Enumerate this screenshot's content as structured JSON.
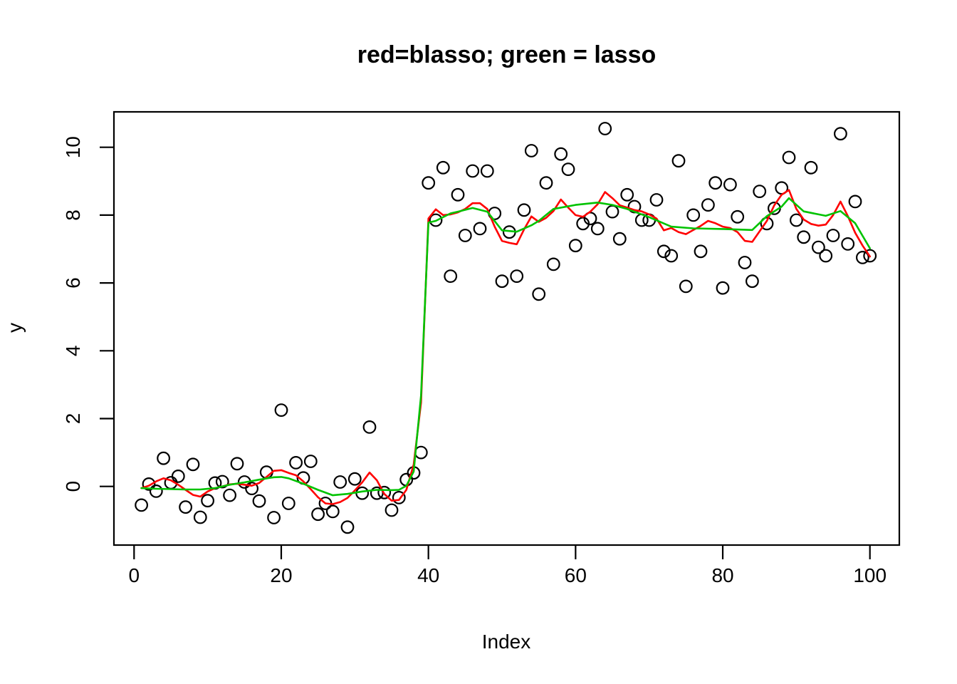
{
  "figure": {
    "title": "red=blasso; green = lasso",
    "x_axis_label": "Index",
    "y_axis_label": "y"
  },
  "chart_data": {
    "type": "scatter",
    "title": "red=blasso; green = lasso",
    "xlabel": "Index",
    "ylabel": "y",
    "xlim": [
      -2.7,
      104
    ],
    "ylim": [
      -1.73,
      11.04
    ],
    "grid": false,
    "legend": "encoded in title: red line = blasso fit, green line = lasso fit, circles = observations y vs Index",
    "x_ticks": [
      0,
      20,
      40,
      60,
      80,
      100
    ],
    "y_ticks": [
      0,
      2,
      4,
      6,
      8,
      10
    ],
    "points_color": "#000000",
    "points": {
      "x": [
        1,
        2,
        3,
        4,
        5,
        6,
        7,
        8,
        9,
        10,
        11,
        12,
        13,
        14,
        15,
        16,
        17,
        18,
        19,
        20,
        21,
        22,
        23,
        24,
        25,
        26,
        27,
        28,
        29,
        30,
        31,
        32,
        33,
        34,
        35,
        36,
        37,
        38,
        39,
        40,
        41,
        42,
        43,
        44,
        45,
        46,
        47,
        48,
        49,
        50,
        51,
        52,
        53,
        54,
        55,
        56,
        57,
        58,
        59,
        60,
        61,
        62,
        63,
        64,
        65,
        66,
        67,
        68,
        69,
        70,
        71,
        72,
        73,
        74,
        75,
        76,
        77,
        78,
        79,
        80,
        81,
        82,
        83,
        84,
        85,
        86,
        87,
        88,
        89,
        90,
        91,
        92,
        93,
        94,
        95,
        96,
        97,
        98,
        99,
        100
      ],
      "y": [
        -0.55,
        0.07,
        -0.14,
        0.83,
        0.11,
        0.3,
        -0.61,
        0.65,
        -0.91,
        -0.42,
        0.1,
        0.14,
        -0.26,
        0.67,
        0.13,
        -0.06,
        -0.43,
        0.42,
        -0.92,
        2.25,
        -0.5,
        0.7,
        0.25,
        0.74,
        -0.82,
        -0.5,
        -0.74,
        0.13,
        -1.2,
        0.22,
        -0.2,
        1.75,
        -0.2,
        -0.18,
        -0.7,
        -0.33,
        0.2,
        0.4,
        1.0,
        8.95,
        7.85,
        9.4,
        6.2,
        8.6,
        7.4,
        9.3,
        7.6,
        9.3,
        8.05,
        6.05,
        7.5,
        6.2,
        8.15,
        9.9,
        5.67,
        8.95,
        6.55,
        9.8,
        9.35,
        7.1,
        7.75,
        7.9,
        7.6,
        10.55,
        8.1,
        7.3,
        8.6,
        8.25,
        7.85,
        7.85,
        8.45,
        6.93,
        6.8,
        9.6,
        5.9,
        8.0,
        6.93,
        8.3,
        8.95,
        5.85,
        8.9,
        7.95,
        6.6,
        6.05,
        8.7,
        7.75,
        8.2,
        8.8,
        9.7,
        7.85,
        7.35,
        9.4,
        7.05,
        6.8,
        7.4,
        10.4,
        7.15,
        8.4,
        6.75,
        6.8
      ]
    },
    "series": [
      {
        "name": "blasso",
        "color": "#ff0000",
        "points": [
          [
            1,
            -0.05
          ],
          [
            2,
            0.02
          ],
          [
            3,
            0.15
          ],
          [
            4,
            0.24
          ],
          [
            5,
            0.18
          ],
          [
            6,
            0.05
          ],
          [
            7,
            -0.1
          ],
          [
            8,
            -0.25
          ],
          [
            9,
            -0.3
          ],
          [
            10,
            -0.15
          ],
          [
            11,
            -0.05
          ],
          [
            12,
            0.0
          ],
          [
            13,
            0.06
          ],
          [
            14,
            0.08
          ],
          [
            15,
            0.05
          ],
          [
            16,
            0.02
          ],
          [
            17,
            0.1
          ],
          [
            18,
            0.28
          ],
          [
            19,
            0.46
          ],
          [
            20,
            0.48
          ],
          [
            21,
            0.4
          ],
          [
            22,
            0.33
          ],
          [
            23,
            0.15
          ],
          [
            24,
            -0.08
          ],
          [
            25,
            -0.32
          ],
          [
            26,
            -0.5
          ],
          [
            27,
            -0.52
          ],
          [
            28,
            -0.46
          ],
          [
            29,
            -0.34
          ],
          [
            30,
            -0.12
          ],
          [
            31,
            0.12
          ],
          [
            32,
            0.41
          ],
          [
            33,
            0.18
          ],
          [
            34,
            -0.22
          ],
          [
            35,
            -0.42
          ],
          [
            36,
            -0.4
          ],
          [
            37,
            -0.1
          ],
          [
            38,
            0.65
          ],
          [
            39,
            2.47
          ],
          [
            40,
            7.9
          ],
          [
            41,
            8.17
          ],
          [
            42,
            8.0
          ],
          [
            43,
            8.02
          ],
          [
            44,
            8.08
          ],
          [
            45,
            8.18
          ],
          [
            46,
            8.35
          ],
          [
            47,
            8.35
          ],
          [
            48,
            8.18
          ],
          [
            49,
            7.66
          ],
          [
            50,
            7.24
          ],
          [
            51,
            7.18
          ],
          [
            52,
            7.14
          ],
          [
            53,
            7.58
          ],
          [
            54,
            7.96
          ],
          [
            55,
            7.8
          ],
          [
            56,
            7.92
          ],
          [
            57,
            8.12
          ],
          [
            58,
            8.46
          ],
          [
            59,
            8.22
          ],
          [
            60,
            8.0
          ],
          [
            61,
            7.95
          ],
          [
            62,
            8.1
          ],
          [
            63,
            8.32
          ],
          [
            64,
            8.68
          ],
          [
            65,
            8.5
          ],
          [
            66,
            8.29
          ],
          [
            67,
            8.22
          ],
          [
            68,
            8.15
          ],
          [
            69,
            8.11
          ],
          [
            70,
            8.02
          ],
          [
            71,
            7.9
          ],
          [
            72,
            7.55
          ],
          [
            73,
            7.62
          ],
          [
            74,
            7.5
          ],
          [
            75,
            7.44
          ],
          [
            76,
            7.56
          ],
          [
            77,
            7.68
          ],
          [
            78,
            7.83
          ],
          [
            79,
            7.76
          ],
          [
            80,
            7.66
          ],
          [
            81,
            7.62
          ],
          [
            82,
            7.5
          ],
          [
            83,
            7.24
          ],
          [
            84,
            7.21
          ],
          [
            85,
            7.52
          ],
          [
            86,
            7.83
          ],
          [
            87,
            8.29
          ],
          [
            88,
            8.6
          ],
          [
            89,
            8.74
          ],
          [
            90,
            8.18
          ],
          [
            91,
            7.87
          ],
          [
            92,
            7.74
          ],
          [
            93,
            7.69
          ],
          [
            94,
            7.72
          ],
          [
            95,
            8.0
          ],
          [
            96,
            8.4
          ],
          [
            97,
            7.97
          ],
          [
            98,
            7.48
          ],
          [
            99,
            7.1
          ],
          [
            100,
            6.78
          ]
        ]
      },
      {
        "name": "lasso",
        "color": "#00c300",
        "points": [
          [
            1,
            -0.05
          ],
          [
            3,
            -0.07
          ],
          [
            5,
            -0.08
          ],
          [
            7,
            -0.09
          ],
          [
            9,
            -0.09
          ],
          [
            11,
            -0.05
          ],
          [
            13,
            0.05
          ],
          [
            15,
            0.12
          ],
          [
            17,
            0.2
          ],
          [
            19,
            0.27
          ],
          [
            20,
            0.28
          ],
          [
            21,
            0.24
          ],
          [
            23,
            0.08
          ],
          [
            25,
            -0.1
          ],
          [
            27,
            -0.26
          ],
          [
            29,
            -0.22
          ],
          [
            31,
            -0.15
          ],
          [
            33,
            -0.1
          ],
          [
            35,
            -0.11
          ],
          [
            36,
            -0.1
          ],
          [
            37,
            0.02
          ],
          [
            38,
            0.44
          ],
          [
            39,
            2.68
          ],
          [
            40,
            7.78
          ],
          [
            41,
            7.83
          ],
          [
            43,
            8.05
          ],
          [
            44,
            8.1
          ],
          [
            46,
            8.21
          ],
          [
            48,
            8.1
          ],
          [
            50,
            7.55
          ],
          [
            52,
            7.51
          ],
          [
            54,
            7.7
          ],
          [
            55,
            7.83
          ],
          [
            57,
            8.18
          ],
          [
            60,
            8.3
          ],
          [
            63,
            8.37
          ],
          [
            65,
            8.3
          ],
          [
            67,
            8.18
          ],
          [
            70,
            7.94
          ],
          [
            73,
            7.66
          ],
          [
            76,
            7.61
          ],
          [
            80,
            7.59
          ],
          [
            84,
            7.56
          ],
          [
            86,
            7.97
          ],
          [
            88,
            8.25
          ],
          [
            89,
            8.5
          ],
          [
            91,
            8.11
          ],
          [
            94,
            7.98
          ],
          [
            96,
            8.12
          ],
          [
            98,
            7.76
          ],
          [
            100,
            7.02
          ]
        ]
      }
    ]
  }
}
